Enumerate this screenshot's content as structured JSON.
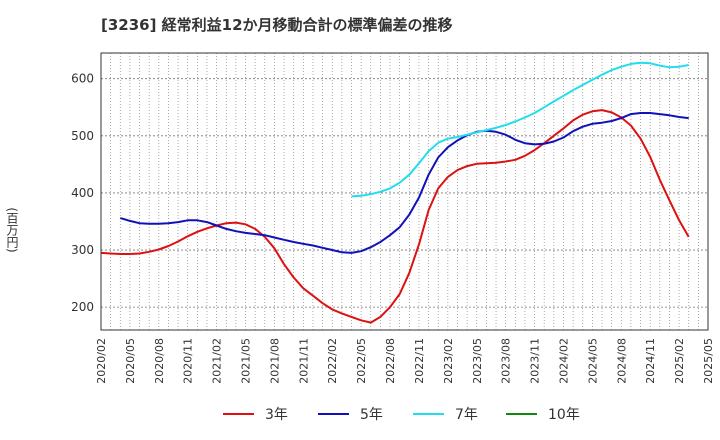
{
  "chart_data": {
    "type": "line",
    "title": "[3236]  経常利益12か月移動合計の標準偏差の推移",
    "ylabel": "(百万円)",
    "xlabel": "",
    "ylim": [
      160,
      645
    ],
    "yticks": [
      200,
      300,
      400,
      500,
      600
    ],
    "x_ticks": [
      "2020/02",
      "2020/05",
      "2020/08",
      "2020/11",
      "2021/02",
      "2021/05",
      "2021/08",
      "2021/11",
      "2022/02",
      "2022/05",
      "2022/08",
      "2022/11",
      "2023/02",
      "2023/05",
      "2023/08",
      "2023/11",
      "2024/02",
      "2024/05",
      "2024/08",
      "2024/11",
      "2025/02",
      "2025/05"
    ],
    "grid": true,
    "legend_position": "bottom",
    "series": [
      {
        "name": "3年",
        "color": "#dd1111",
        "points": [
          [
            "2020/02",
            295
          ],
          [
            "2020/03",
            294
          ],
          [
            "2020/04",
            293
          ],
          [
            "2020/05",
            293
          ],
          [
            "2020/06",
            294
          ],
          [
            "2020/07",
            297
          ],
          [
            "2020/08",
            301
          ],
          [
            "2020/09",
            307
          ],
          [
            "2020/10",
            315
          ],
          [
            "2020/11",
            324
          ],
          [
            "2020/12",
            332
          ],
          [
            "2021/01",
            338
          ],
          [
            "2021/02",
            343
          ],
          [
            "2021/03",
            347
          ],
          [
            "2021/04",
            348
          ],
          [
            "2021/05",
            345
          ],
          [
            "2021/06",
            337
          ],
          [
            "2021/07",
            323
          ],
          [
            "2021/08",
            303
          ],
          [
            "2021/09",
            275
          ],
          [
            "2021/10",
            252
          ],
          [
            "2021/11",
            233
          ],
          [
            "2021/12",
            220
          ],
          [
            "2022/01",
            207
          ],
          [
            "2022/02",
            196
          ],
          [
            "2022/03",
            189
          ],
          [
            "2022/04",
            183
          ],
          [
            "2022/05",
            177
          ],
          [
            "2022/06",
            173
          ],
          [
            "2022/07",
            183
          ],
          [
            "2022/08",
            200
          ],
          [
            "2022/09",
            223
          ],
          [
            "2022/10",
            260
          ],
          [
            "2022/11",
            310
          ],
          [
            "2022/12",
            370
          ],
          [
            "2023/01",
            408
          ],
          [
            "2023/02",
            428
          ],
          [
            "2023/03",
            440
          ],
          [
            "2023/04",
            447
          ],
          [
            "2023/05",
            451
          ],
          [
            "2023/06",
            452
          ],
          [
            "2023/07",
            453
          ],
          [
            "2023/08",
            455
          ],
          [
            "2023/09",
            458
          ],
          [
            "2023/10",
            465
          ],
          [
            "2023/11",
            475
          ],
          [
            "2023/12",
            487
          ],
          [
            "2024/01",
            500
          ],
          [
            "2024/02",
            513
          ],
          [
            "2024/03",
            527
          ],
          [
            "2024/04",
            537
          ],
          [
            "2024/05",
            543
          ],
          [
            "2024/06",
            545
          ],
          [
            "2024/07",
            541
          ],
          [
            "2024/08",
            532
          ],
          [
            "2024/09",
            518
          ],
          [
            "2024/10",
            495
          ],
          [
            "2024/11",
            463
          ],
          [
            "2024/12",
            423
          ],
          [
            "2025/01",
            387
          ],
          [
            "2025/02",
            352
          ],
          [
            "2025/03",
            323
          ]
        ]
      },
      {
        "name": "5年",
        "color": "#1111bb",
        "points": [
          [
            "2020/04",
            356
          ],
          [
            "2020/05",
            351
          ],
          [
            "2020/06",
            347
          ],
          [
            "2020/07",
            346
          ],
          [
            "2020/08",
            346
          ],
          [
            "2020/09",
            347
          ],
          [
            "2020/10",
            349
          ],
          [
            "2020/11",
            352
          ],
          [
            "2020/12",
            352
          ],
          [
            "2021/01",
            349
          ],
          [
            "2021/02",
            343
          ],
          [
            "2021/03",
            337
          ],
          [
            "2021/04",
            333
          ],
          [
            "2021/05",
            330
          ],
          [
            "2021/06",
            328
          ],
          [
            "2021/07",
            326
          ],
          [
            "2021/08",
            322
          ],
          [
            "2021/09",
            318
          ],
          [
            "2021/10",
            314
          ],
          [
            "2021/11",
            311
          ],
          [
            "2021/12",
            308
          ],
          [
            "2022/01",
            304
          ],
          [
            "2022/02",
            300
          ],
          [
            "2022/03",
            296
          ],
          [
            "2022/04",
            295
          ],
          [
            "2022/05",
            298
          ],
          [
            "2022/06",
            305
          ],
          [
            "2022/07",
            314
          ],
          [
            "2022/08",
            326
          ],
          [
            "2022/09",
            340
          ],
          [
            "2022/10",
            362
          ],
          [
            "2022/11",
            392
          ],
          [
            "2022/12",
            432
          ],
          [
            "2023/01",
            462
          ],
          [
            "2023/02",
            480
          ],
          [
            "2023/03",
            492
          ],
          [
            "2023/04",
            501
          ],
          [
            "2023/05",
            507
          ],
          [
            "2023/06",
            509
          ],
          [
            "2023/07",
            507
          ],
          [
            "2023/08",
            502
          ],
          [
            "2023/09",
            493
          ],
          [
            "2023/10",
            487
          ],
          [
            "2023/11",
            485
          ],
          [
            "2023/12",
            486
          ],
          [
            "2024/01",
            490
          ],
          [
            "2024/02",
            497
          ],
          [
            "2024/03",
            508
          ],
          [
            "2024/04",
            516
          ],
          [
            "2024/05",
            521
          ],
          [
            "2024/06",
            523
          ],
          [
            "2024/07",
            526
          ],
          [
            "2024/08",
            531
          ],
          [
            "2024/09",
            538
          ],
          [
            "2024/10",
            540
          ],
          [
            "2024/11",
            540
          ],
          [
            "2024/12",
            538
          ],
          [
            "2025/01",
            536
          ],
          [
            "2025/02",
            533
          ],
          [
            "2025/03",
            531
          ]
        ]
      },
      {
        "name": "7年",
        "color": "#22ddee",
        "points": [
          [
            "2022/04",
            394
          ],
          [
            "2022/05",
            395
          ],
          [
            "2022/06",
            398
          ],
          [
            "2022/07",
            402
          ],
          [
            "2022/08",
            408
          ],
          [
            "2022/09",
            418
          ],
          [
            "2022/10",
            432
          ],
          [
            "2022/11",
            452
          ],
          [
            "2022/12",
            473
          ],
          [
            "2023/01",
            488
          ],
          [
            "2023/02",
            495
          ],
          [
            "2023/03",
            498
          ],
          [
            "2023/04",
            502
          ],
          [
            "2023/05",
            506
          ],
          [
            "2023/06",
            510
          ],
          [
            "2023/07",
            514
          ],
          [
            "2023/08",
            519
          ],
          [
            "2023/09",
            525
          ],
          [
            "2023/10",
            532
          ],
          [
            "2023/11",
            540
          ],
          [
            "2023/12",
            550
          ],
          [
            "2024/01",
            560
          ],
          [
            "2024/02",
            570
          ],
          [
            "2024/03",
            580
          ],
          [
            "2024/04",
            589
          ],
          [
            "2024/05",
            598
          ],
          [
            "2024/06",
            607
          ],
          [
            "2024/07",
            615
          ],
          [
            "2024/08",
            621
          ],
          [
            "2024/09",
            626
          ],
          [
            "2024/10",
            628
          ],
          [
            "2024/11",
            627
          ],
          [
            "2024/12",
            623
          ],
          [
            "2025/01",
            620
          ],
          [
            "2025/02",
            621
          ],
          [
            "2025/03",
            624
          ]
        ]
      },
      {
        "name": "10年",
        "color": "#118811",
        "points": []
      }
    ]
  }
}
